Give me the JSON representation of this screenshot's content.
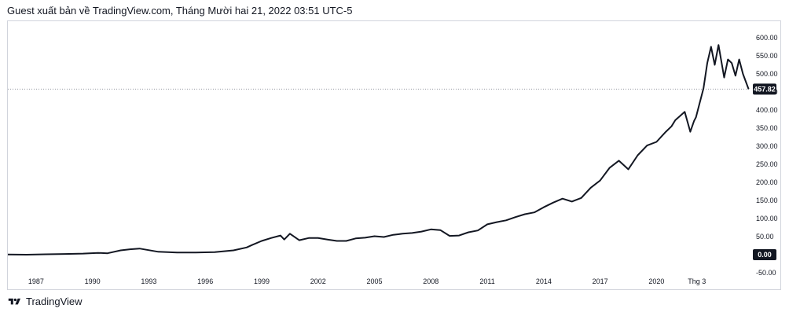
{
  "header": {
    "publish_text": "Guest xuất bản về TradingView.com, Tháng Mười hai 21, 2022 03:51 UTC-5"
  },
  "footer": {
    "brand_label": "TradingView",
    "logo_icon": "tradingview-logo-icon"
  },
  "colors": {
    "line": "#131722",
    "badge_bg": "#131722",
    "badge_text": "#ffffff",
    "dotted_line": "#9598a1",
    "border": "#d1d4dc"
  },
  "chart_data": {
    "type": "line",
    "title": "",
    "xlabel": "",
    "ylabel": "",
    "grid": false,
    "x_ticks": [
      "1987",
      "1990",
      "1993",
      "1996",
      "1999",
      "2002",
      "2005",
      "2008",
      "2011",
      "2014",
      "2017",
      "2020",
      "Thg 3"
    ],
    "y_ticks": [
      "600.00",
      "550.00",
      "500.00",
      "450.00",
      "400.00",
      "350.00",
      "300.00",
      "250.00",
      "200.00",
      "150.00",
      "100.00",
      "50.00",
      "-50.00"
    ],
    "y_range": [
      -50,
      650
    ],
    "x_range": [
      1985.5,
      2025.0
    ],
    "last_value_label": "457.82",
    "zero_label": "0.00",
    "series": [
      {
        "x": [
          1985.5,
          1986.5,
          1987.5,
          1988.5,
          1989.5,
          1990.3,
          1990.8,
          1991.5,
          1992.0,
          1992.5,
          1993.5,
          1994.5,
          1995.5,
          1996.5,
          1997.5,
          1998.2,
          1998.5,
          1999.0,
          1999.5,
          2000.0,
          2000.2,
          2000.5,
          2001.0,
          2001.5,
          2002.0,
          2002.5,
          2003.0,
          2003.5,
          2004.0,
          2004.5,
          2005.0,
          2005.5,
          2006.0,
          2006.5,
          2007.0,
          2007.5,
          2008.0,
          2008.5,
          2009.0,
          2009.5,
          2010.0,
          2010.5,
          2011.0,
          2011.5,
          2012.0,
          2012.5,
          2013.0,
          2013.5,
          2014.0,
          2014.5,
          2015.0,
          2015.5,
          2016.0,
          2016.5,
          2017.0,
          2017.5,
          2018.0,
          2018.5,
          2019.0,
          2019.5,
          2020.0,
          2020.5,
          2020.8,
          2021.0,
          2021.5,
          2021.8,
          2022.0,
          2022.1,
          2022.3,
          2022.5,
          2022.7,
          2022.9,
          2023.1,
          2023.3,
          2023.6,
          2023.8,
          2024.0,
          2024.2,
          2024.4,
          2024.6,
          2024.9
        ],
        "values": [
          0.5,
          0,
          1,
          2,
          3,
          5,
          4,
          12,
          15,
          17,
          8,
          6,
          6,
          7,
          12,
          20,
          27,
          38,
          46,
          53,
          42,
          58,
          40,
          46,
          46,
          42,
          38,
          38,
          45,
          47,
          51,
          49,
          55,
          58,
          60,
          64,
          70,
          68,
          52,
          53,
          62,
          67,
          84,
          90,
          95,
          104,
          112,
          117,
          131,
          144,
          155,
          147,
          157,
          185,
          205,
          240,
          260,
          236,
          275,
          302,
          312,
          340,
          355,
          372,
          395,
          340,
          370,
          380,
          420,
          460,
          530,
          575,
          525,
          580,
          490,
          540,
          530,
          495,
          540,
          500,
          457.82
        ]
      }
    ]
  }
}
